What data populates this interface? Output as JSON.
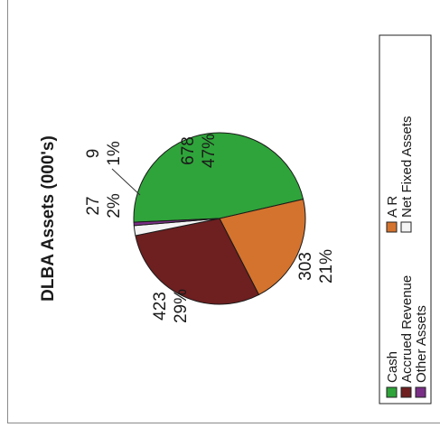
{
  "chart_data": {
    "type": "pie",
    "title": "DLBA Assets (000's)",
    "categories": [
      "Cash",
      "A R",
      "Accrued Revenue",
      "Net Fixed Assets",
      "Other Assets"
    ],
    "values": [
      678,
      303,
      423,
      27,
      9
    ],
    "value_labels": [
      "678",
      "303",
      "423",
      "27",
      "9"
    ],
    "percent_labels": [
      "47%",
      "21%",
      "29%",
      "2%",
      "1%"
    ],
    "colors": [
      "#2fa43a",
      "#d4732e",
      "#6e1f20",
      "#f4f4f4",
      "#7a2f86"
    ],
    "legend_position": "bottom",
    "orientation": "rotated 90 degrees counter-clockwise"
  }
}
